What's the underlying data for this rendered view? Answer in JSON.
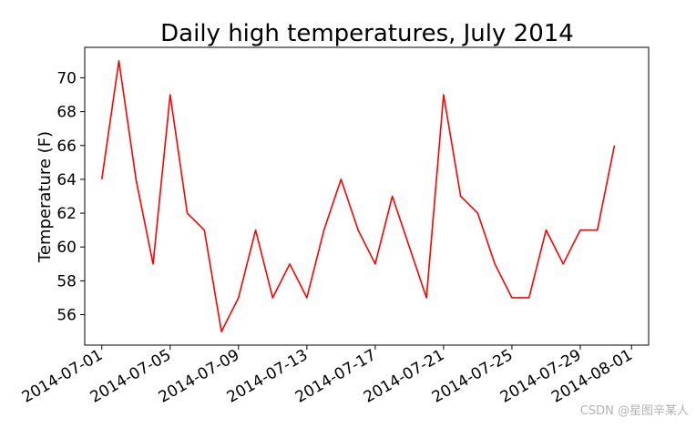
{
  "chart_data": {
    "type": "line",
    "title": "Daily high temperatures, July 2014",
    "xlabel": "",
    "ylabel": "Temperature (F)",
    "x": [
      "2014-07-01",
      "2014-07-02",
      "2014-07-03",
      "2014-07-04",
      "2014-07-05",
      "2014-07-06",
      "2014-07-07",
      "2014-07-08",
      "2014-07-09",
      "2014-07-10",
      "2014-07-11",
      "2014-07-12",
      "2014-07-13",
      "2014-07-14",
      "2014-07-15",
      "2014-07-16",
      "2014-07-17",
      "2014-07-18",
      "2014-07-19",
      "2014-07-20",
      "2014-07-21",
      "2014-07-22",
      "2014-07-23",
      "2014-07-24",
      "2014-07-25",
      "2014-07-26",
      "2014-07-27",
      "2014-07-28",
      "2014-07-29",
      "2014-07-30",
      "2014-07-31"
    ],
    "series": [
      {
        "color": "#ff0000",
        "values": [
          64,
          71,
          64,
          59,
          69,
          62,
          61,
          55,
          57,
          61,
          57,
          59,
          57,
          61,
          64,
          61,
          59,
          63,
          60,
          57,
          69,
          63,
          62,
          59,
          57,
          57,
          61,
          59,
          61,
          61,
          66
        ]
      }
    ],
    "xlim": [
      "2014-06-30",
      "2014-08-02"
    ],
    "ylim": [
      54.2,
      71.8
    ],
    "xticks": [
      "2014-07-01",
      "2014-07-05",
      "2014-07-09",
      "2014-07-13",
      "2014-07-17",
      "2014-07-21",
      "2014-07-25",
      "2014-07-29",
      "2014-08-01"
    ],
    "yticks": [
      56,
      58,
      60,
      62,
      64,
      66,
      68,
      70
    ],
    "grid": false
  },
  "watermark": "CSDN @星图辛某人"
}
